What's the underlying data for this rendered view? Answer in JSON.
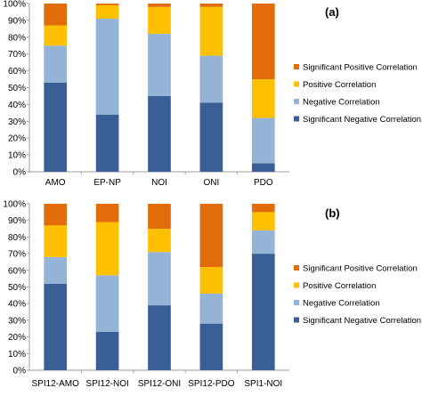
{
  "colors": {
    "significant_negative": "#3A5F96",
    "negative": "#95B3D7",
    "positive": "#FFC000",
    "significant_positive": "#E36C0A",
    "axis": "#9E9E9E"
  },
  "chart_data": [
    {
      "type": "bar",
      "stacked": true,
      "panel_label": "(a)",
      "categories": [
        "AMO",
        "EP-NP",
        "NOI",
        "ONI",
        "PDO"
      ],
      "series": [
        {
          "name": "Significant Negative Correlation",
          "values": [
            53,
            34,
            45,
            41,
            5
          ]
        },
        {
          "name": "Negative Correlation",
          "values": [
            22,
            57,
            37,
            28,
            27
          ]
        },
        {
          "name": "Positive Correlation",
          "values": [
            12,
            8,
            16,
            29,
            23
          ]
        },
        {
          "name": "Significant Positive Correlation",
          "values": [
            13,
            1,
            2,
            2,
            45
          ]
        }
      ],
      "yticks": [
        "0%",
        "10%",
        "20%",
        "30%",
        "40%",
        "50%",
        "60%",
        "70%",
        "80%",
        "90%",
        "100%"
      ],
      "ylim": [
        0,
        100
      ],
      "legend_position": "right",
      "grid": false
    },
    {
      "type": "bar",
      "stacked": true,
      "panel_label": "(b)",
      "categories": [
        "SPI12-AMO",
        "SPI12-NOI",
        "SPI12-ONI",
        "SPI12-PDO",
        "SPI1-NOI"
      ],
      "series": [
        {
          "name": "Significant Negative Correlation",
          "values": [
            52,
            23,
            39,
            28,
            70
          ]
        },
        {
          "name": "Negative Correlation",
          "values": [
            16,
            34,
            32,
            18,
            14
          ]
        },
        {
          "name": "Positive Correlation",
          "values": [
            19,
            32,
            14,
            16,
            11
          ]
        },
        {
          "name": "Significant Positive Correlation",
          "values": [
            13,
            11,
            15,
            38,
            5
          ]
        }
      ],
      "yticks": [
        "0%",
        "10%",
        "20%",
        "30%",
        "40%",
        "50%",
        "60%",
        "70%",
        "80%",
        "90%",
        "100%"
      ],
      "ylim": [
        0,
        100
      ],
      "legend_position": "right",
      "grid": false
    }
  ]
}
